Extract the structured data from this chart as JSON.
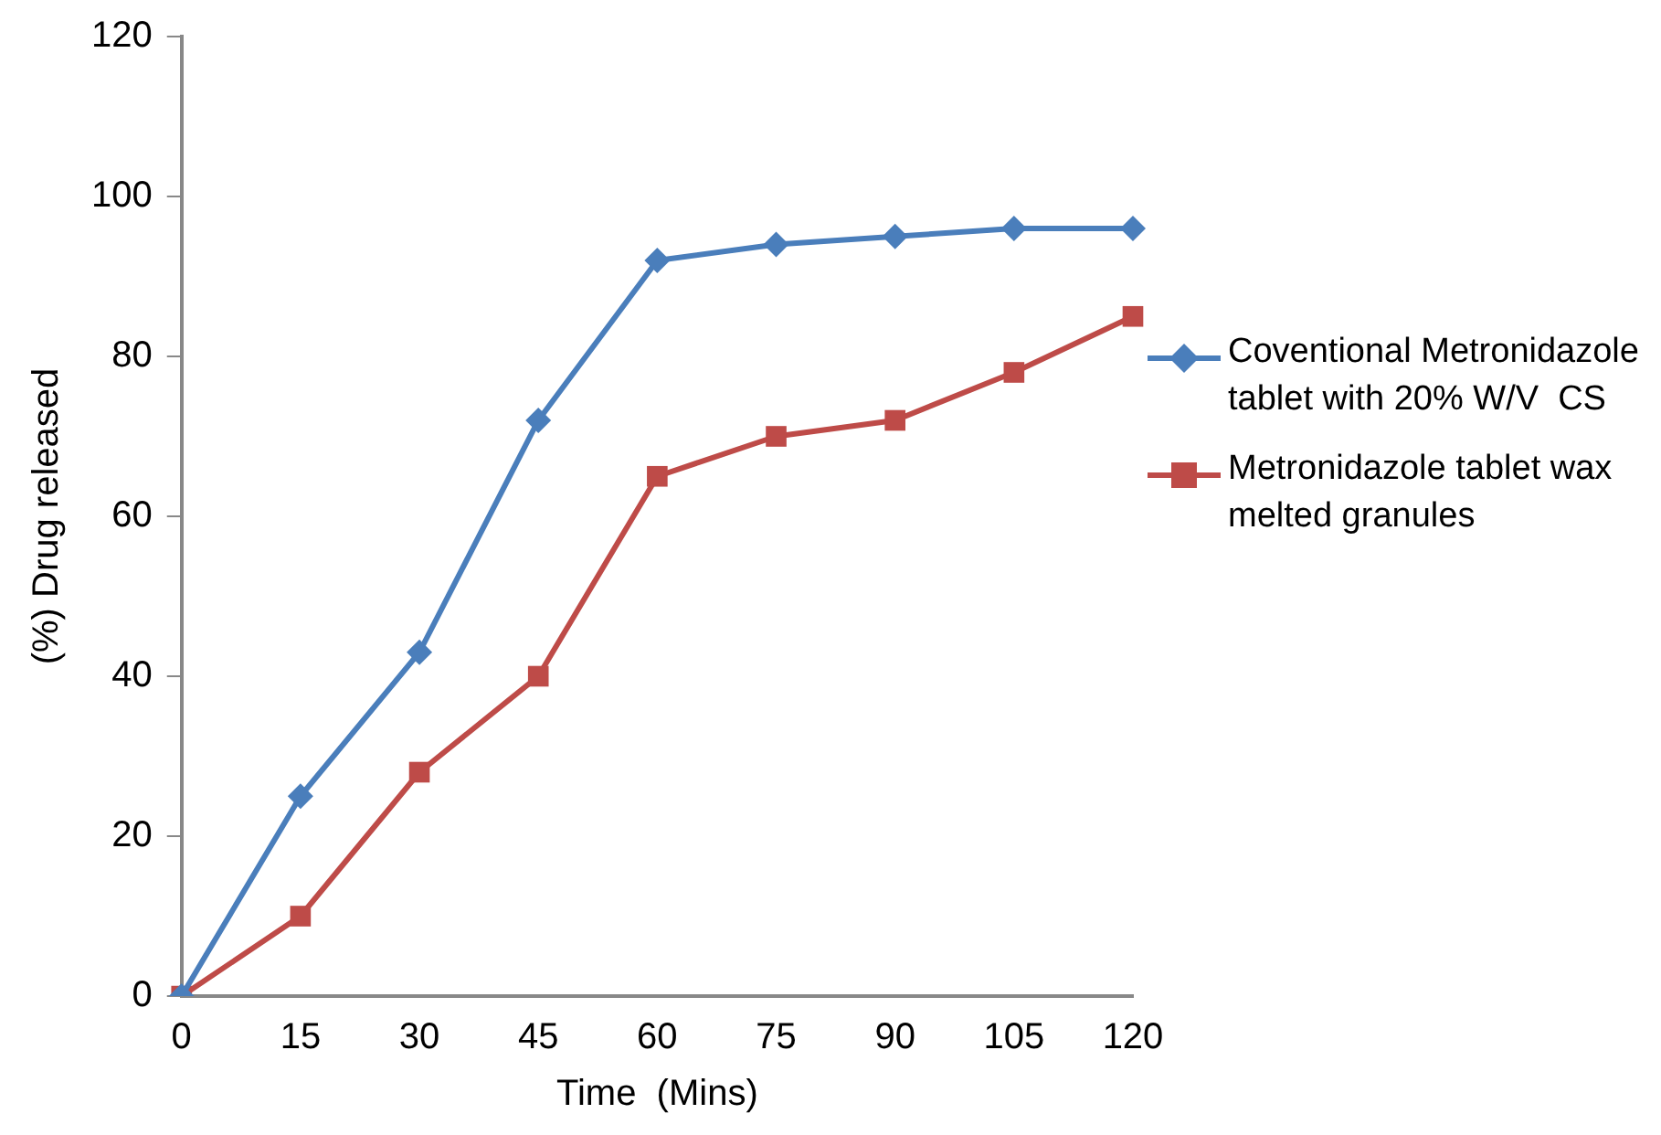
{
  "chart_data": {
    "type": "line",
    "xlabel": "Time  (Mins)",
    "ylabel": "(%) Drug released",
    "categories": [
      "0",
      "15",
      "30",
      "45",
      "60",
      "75",
      "90",
      "105",
      "120"
    ],
    "series": [
      {
        "name": "Coventional Metronidazole tablet with 20% W/V  CS",
        "color": "#4a7ebb",
        "marker": "diamond",
        "values": [
          0,
          25,
          43,
          72,
          92,
          94,
          95,
          96,
          96
        ]
      },
      {
        "name": "Metronidazole tablet wax melted granules",
        "color": "#be4b48",
        "marker": "square",
        "values": [
          0,
          10,
          28,
          40,
          65,
          70,
          72,
          78,
          85
        ]
      }
    ],
    "ylim": [
      0,
      120
    ],
    "yticks": [
      0,
      20,
      40,
      60,
      80,
      100,
      120
    ],
    "grid": false,
    "legend": "right"
  }
}
